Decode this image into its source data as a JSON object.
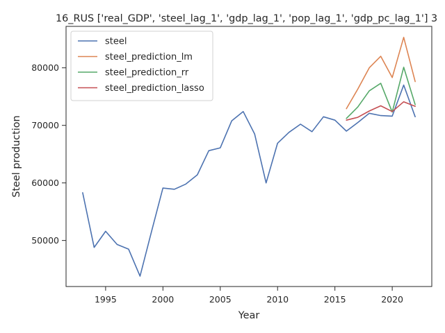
{
  "chart_data": {
    "type": "line",
    "title": "16_RUS ['real_GDP', 'steel_lag_1', 'gdp_lag_1', 'pop_lag_1', 'gdp_pc_lag_1'] 3",
    "xlabel": "Year",
    "ylabel": "Steel production",
    "xlim": [
      1991.55,
      2023.45
    ],
    "ylim": [
      42000,
      87200
    ],
    "xticks": [
      1995,
      2000,
      2005,
      2010,
      2015,
      2020
    ],
    "yticks": [
      50000,
      60000,
      70000,
      80000
    ],
    "grid": false,
    "legend": "top-left",
    "series": [
      {
        "name": "steel",
        "color": "#4c72b0",
        "x": [
          1993,
          1994,
          1995,
          1996,
          1997,
          1998,
          1999,
          2000,
          2001,
          2002,
          2003,
          2004,
          2005,
          2006,
          2007,
          2008,
          2009,
          2010,
          2011,
          2012,
          2013,
          2014,
          2015,
          2016,
          2017,
          2018,
          2019,
          2020,
          2021,
          2022
        ],
        "y": [
          58300,
          48800,
          51600,
          49300,
          48500,
          43800,
          51500,
          59100,
          58900,
          59800,
          61400,
          65600,
          66100,
          70800,
          72400,
          68500,
          60000,
          66900,
          68800,
          70200,
          68900,
          71500,
          70900,
          69000,
          70500,
          72100,
          71700,
          71600,
          77000,
          71500
        ]
      },
      {
        "name": "steel_prediction_lm",
        "color": "#dd8452",
        "x": [
          2016,
          2017,
          2018,
          2019,
          2020,
          2021,
          2022
        ],
        "y": [
          72900,
          76300,
          80000,
          82000,
          78300,
          85300,
          77600
        ]
      },
      {
        "name": "steel_prediction_rr",
        "color": "#55a868",
        "x": [
          2016,
          2017,
          2018,
          2019,
          2020,
          2021,
          2022
        ],
        "y": [
          71200,
          73200,
          76000,
          77300,
          72300,
          80100,
          73600
        ]
      },
      {
        "name": "steel_prediction_lasso",
        "color": "#c44e52",
        "x": [
          2016,
          2017,
          2018,
          2019,
          2020,
          2021,
          2022
        ],
        "y": [
          70900,
          71400,
          72500,
          73400,
          72400,
          74100,
          73300
        ]
      }
    ]
  }
}
